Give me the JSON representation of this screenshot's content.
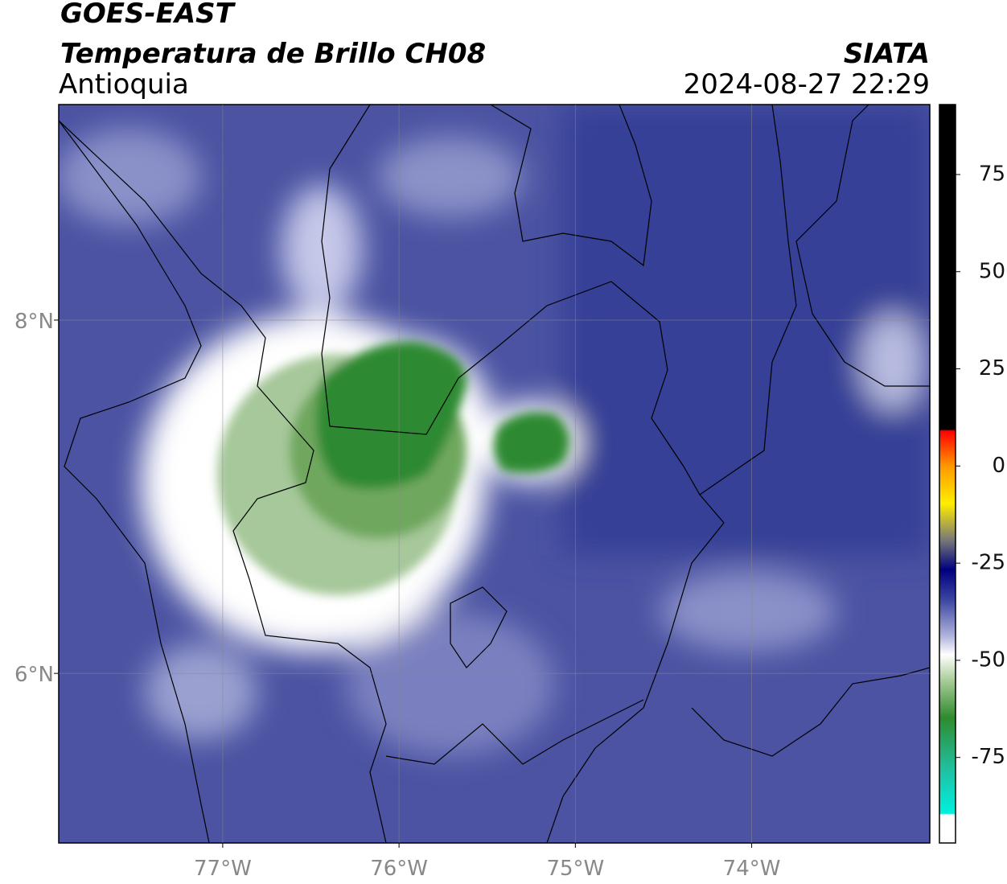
{
  "map": {
    "title": "GOES-EAST",
    "subtitle": "Temperatura de Brillo CH08",
    "region": "Antioquia",
    "source": "SIATA",
    "datetime": "2024-08-27 22:29",
    "xlim": [
      -77.93,
      -72.99
    ],
    "ylim": [
      5.04,
      9.22
    ],
    "xticks": [
      {
        "value": -77,
        "label": "77°W"
      },
      {
        "value": -76,
        "label": "76°W"
      },
      {
        "value": -75,
        "label": "75°W"
      },
      {
        "value": -74,
        "label": "74°W"
      }
    ],
    "yticks": [
      {
        "value": 6,
        "label": "6°N"
      },
      {
        "value": 8,
        "label": "8°N"
      }
    ],
    "grid": true,
    "colorbar": {
      "lim": [
        -97,
        93
      ],
      "ticks": [
        75,
        50,
        25,
        0,
        -25,
        -50,
        -75
      ]
    }
  }
}
